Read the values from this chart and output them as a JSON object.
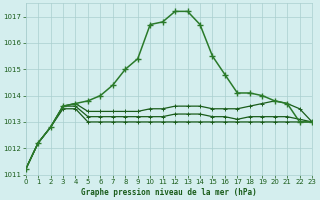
{
  "title": "Graphe pression niveau de la mer (hPa)",
  "background_color": "#d4eeee",
  "grid_color": "#aacfcf",
  "line_color_dark": "#1a5c1a",
  "line_color_mid": "#2a7a2a",
  "x_values": [
    0,
    1,
    2,
    3,
    4,
    5,
    6,
    7,
    8,
    9,
    10,
    11,
    12,
    13,
    14,
    15,
    16,
    17,
    18,
    19,
    20,
    21,
    22,
    23
  ],
  "series1": [
    1011.2,
    1012.2,
    1012.8,
    1013.6,
    1013.7,
    1013.8,
    1014.0,
    1014.4,
    1015.0,
    1015.4,
    1016.7,
    1016.8,
    1017.2,
    1017.2,
    1016.7,
    1015.5,
    1014.8,
    1014.1,
    1014.1,
    1014.0,
    1013.8,
    1013.7,
    1013.0,
    1013.0
  ],
  "series2": [
    1011.2,
    1012.2,
    1012.8,
    1013.6,
    1013.7,
    1013.4,
    1013.4,
    1013.4,
    1013.4,
    1013.4,
    1013.5,
    1013.5,
    1013.6,
    1013.6,
    1013.6,
    1013.5,
    1013.5,
    1013.5,
    1013.6,
    1013.7,
    1013.8,
    1013.7,
    1013.5,
    1013.0
  ],
  "series3": [
    1011.2,
    1012.2,
    1012.8,
    1013.6,
    1013.6,
    1013.2,
    1013.2,
    1013.2,
    1013.2,
    1013.2,
    1013.2,
    1013.2,
    1013.3,
    1013.3,
    1013.3,
    1013.2,
    1013.2,
    1013.1,
    1013.2,
    1013.2,
    1013.2,
    1013.2,
    1013.1,
    1013.0
  ],
  "series4": [
    1011.2,
    1012.2,
    1012.8,
    1013.5,
    1013.5,
    1013.0,
    1013.0,
    1013.0,
    1013.0,
    1013.0,
    1013.0,
    1013.0,
    1013.0,
    1013.0,
    1013.0,
    1013.0,
    1013.0,
    1013.0,
    1013.0,
    1013.0,
    1013.0,
    1013.0,
    1013.0,
    1013.0
  ],
  "ylim": [
    1011.0,
    1017.5
  ],
  "yticks": [
    1011,
    1012,
    1013,
    1014,
    1015,
    1016,
    1017
  ],
  "xlim": [
    0,
    23
  ],
  "xticks": [
    0,
    1,
    2,
    3,
    4,
    5,
    6,
    7,
    8,
    9,
    10,
    11,
    12,
    13,
    14,
    15,
    16,
    17,
    18,
    19,
    20,
    21,
    22,
    23
  ]
}
